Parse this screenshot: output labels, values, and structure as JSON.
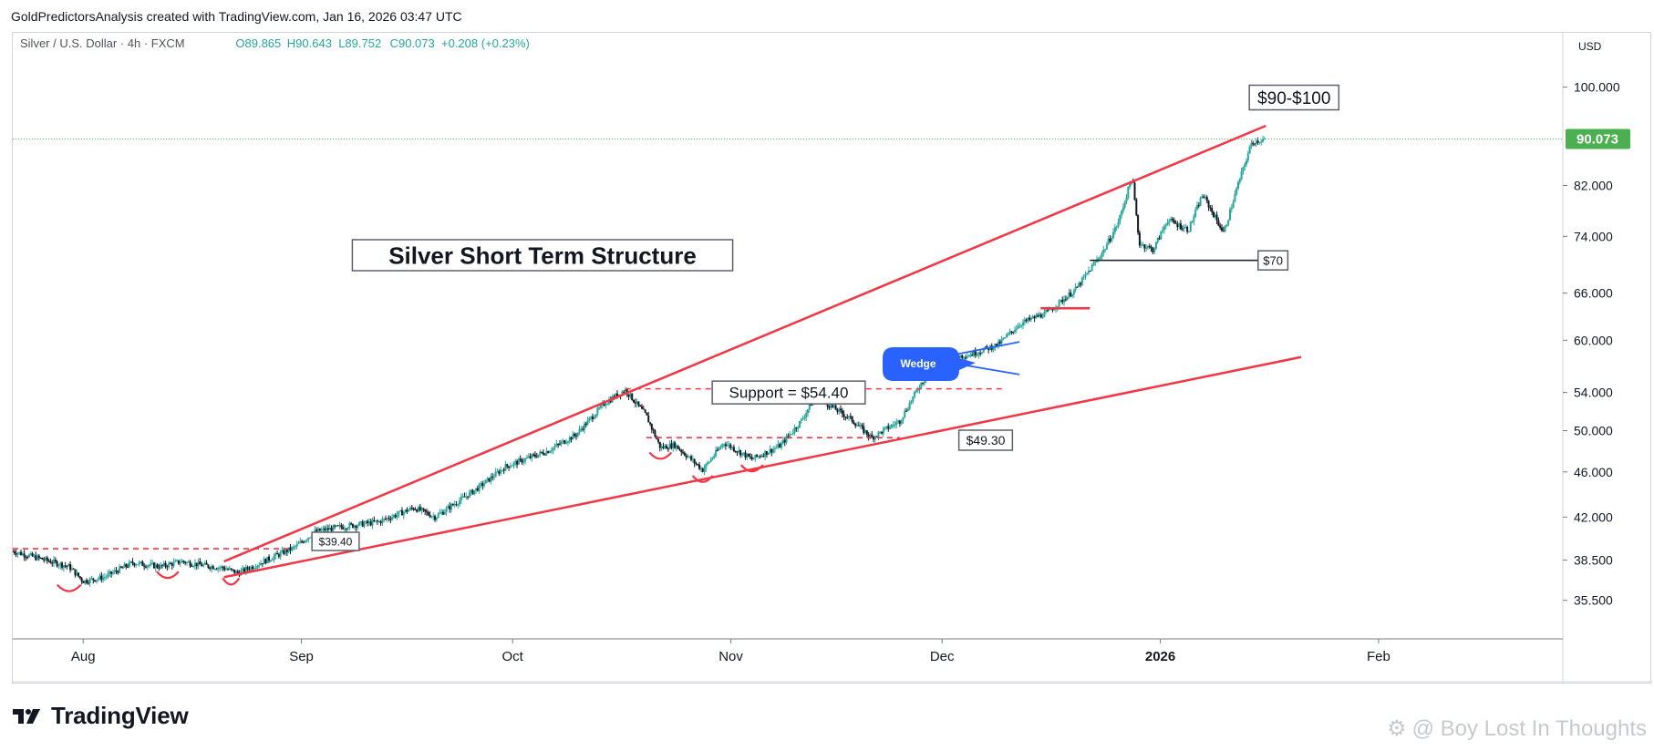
{
  "header": {
    "credit": "GoldPredictorsAnalysis created with TradingView.com, Jan 16, 2026 03:47 UTC"
  },
  "symbol_bar": {
    "symbol": "Silver / U.S. Dollar · 4h · FXCM",
    "open": "O89.865",
    "high": "H90.643",
    "low": "L89.752",
    "close": "C90.073",
    "change": "+0.208 (+0.23%)"
  },
  "price_axis": {
    "currency": "USD",
    "current_price": "90.073"
  },
  "footer": {
    "brand": "TradingView",
    "watermark": "@ Boy Lost In Thoughts"
  },
  "colors": {
    "up": "#26a69a",
    "down": "#131722",
    "trendline": "#f23645",
    "wedge": "#2962ff",
    "price_tag": "#4caf50",
    "grid": "#f0f3fa"
  },
  "chart_data": {
    "type": "candlestick",
    "title": "Silver Short Term Structure",
    "timeframe": "4h",
    "ylim": [
      35.5,
      105
    ],
    "y_scale": "log",
    "grid": false,
    "y_ticks": [
      "100.000",
      "82.000",
      "74.000",
      "66.000",
      "60.000",
      "54.000",
      "50.000",
      "46.000",
      "42.000",
      "38.500",
      "35.500"
    ],
    "x_ticks": [
      "Aug",
      "Sep",
      "Oct",
      "Nov",
      "Dec",
      "2026",
      "Feb"
    ],
    "price_path": [
      {
        "date": "2025-07-22",
        "price": 39.2
      },
      {
        "date": "2025-07-26",
        "price": 38.6
      },
      {
        "date": "2025-07-30",
        "price": 38.0
      },
      {
        "date": "2025-08-01",
        "price": 36.9
      },
      {
        "date": "2025-08-04",
        "price": 37.2
      },
      {
        "date": "2025-08-08",
        "price": 38.3
      },
      {
        "date": "2025-08-12",
        "price": 38.0
      },
      {
        "date": "2025-08-15",
        "price": 38.4
      },
      {
        "date": "2025-08-18",
        "price": 38.1
      },
      {
        "date": "2025-08-21",
        "price": 37.9
      },
      {
        "date": "2025-08-23",
        "price": 37.5
      },
      {
        "date": "2025-08-27",
        "price": 38.5
      },
      {
        "date": "2025-08-31",
        "price": 39.5
      },
      {
        "date": "2025-09-03",
        "price": 40.8
      },
      {
        "date": "2025-09-07",
        "price": 41.2
      },
      {
        "date": "2025-09-12",
        "price": 41.6
      },
      {
        "date": "2025-09-17",
        "price": 42.8
      },
      {
        "date": "2025-09-20",
        "price": 42.0
      },
      {
        "date": "2025-09-26",
        "price": 44.5
      },
      {
        "date": "2025-09-30",
        "price": 46.5
      },
      {
        "date": "2025-10-06",
        "price": 48.0
      },
      {
        "date": "2025-10-10",
        "price": 49.6
      },
      {
        "date": "2025-10-14",
        "price": 52.8
      },
      {
        "date": "2025-10-17",
        "price": 54.3
      },
      {
        "date": "2025-10-20",
        "price": 51.5
      },
      {
        "date": "2025-10-22",
        "price": 48.3
      },
      {
        "date": "2025-10-24",
        "price": 48.6
      },
      {
        "date": "2025-10-28",
        "price": 46.2
      },
      {
        "date": "2025-10-31",
        "price": 48.8
      },
      {
        "date": "2025-11-04",
        "price": 47.2
      },
      {
        "date": "2025-11-08",
        "price": 48.5
      },
      {
        "date": "2025-11-11",
        "price": 51.0
      },
      {
        "date": "2025-11-13",
        "price": 53.6
      },
      {
        "date": "2025-11-18",
        "price": 51.2
      },
      {
        "date": "2025-11-21",
        "price": 49.3
      },
      {
        "date": "2025-11-25",
        "price": 51.0
      },
      {
        "date": "2025-11-28",
        "price": 55.0
      },
      {
        "date": "2025-12-01",
        "price": 57.8
      },
      {
        "date": "2025-12-05",
        "price": 58.3
      },
      {
        "date": "2025-12-09",
        "price": 59.5
      },
      {
        "date": "2025-12-12",
        "price": 62.0
      },
      {
        "date": "2025-12-16",
        "price": 63.5
      },
      {
        "date": "2025-12-20",
        "price": 66.5
      },
      {
        "date": "2025-12-24",
        "price": 72.0
      },
      {
        "date": "2025-12-26",
        "price": 76.0
      },
      {
        "date": "2025-12-28",
        "price": 83.5
      },
      {
        "date": "2025-12-29",
        "price": 73.0
      },
      {
        "date": "2025-12-31",
        "price": 72.0
      },
      {
        "date": "2026-01-02",
        "price": 76.5
      },
      {
        "date": "2026-01-05",
        "price": 75.0
      },
      {
        "date": "2026-01-07",
        "price": 80.5
      },
      {
        "date": "2026-01-09",
        "price": 76.5
      },
      {
        "date": "2026-01-10",
        "price": 74.5
      },
      {
        "date": "2026-01-12",
        "price": 82.0
      },
      {
        "date": "2026-01-14",
        "price": 89.5
      },
      {
        "date": "2026-01-16",
        "price": 90.073
      }
    ],
    "trendlines": [
      {
        "name": "upper",
        "from": {
          "date": "2025-08-21",
          "price": 38.4
        },
        "to": {
          "date": "2026-01-16",
          "price": 92.5
        }
      },
      {
        "name": "lower",
        "from": {
          "date": "2025-08-21",
          "price": 37.2
        },
        "to": {
          "date": "2026-01-21",
          "price": 58.0
        }
      }
    ],
    "levels": [
      {
        "price": 39.4,
        "from": "2025-07-22",
        "to": "2025-08-31",
        "style": "dashed"
      },
      {
        "price": 54.4,
        "from": "2025-10-17",
        "to": "2025-12-10",
        "style": "dashed"
      },
      {
        "price": 49.3,
        "from": "2025-10-20",
        "to": "2025-11-25",
        "style": "dashed"
      },
      {
        "price": 64.0,
        "from": "2025-12-15",
        "to": "2025-12-22",
        "style": "solid"
      },
      {
        "price": 70.5,
        "from": "2025-12-22",
        "to": "2026-01-16",
        "style": "solid-black"
      }
    ],
    "wedge": {
      "upper": {
        "from": {
          "date": "2025-12-01",
          "price": 58.0
        },
        "to": {
          "date": "2025-12-12",
          "price": 59.8
        }
      },
      "lower": {
        "from": {
          "date": "2025-12-01",
          "price": 57.5
        },
        "to": {
          "date": "2025-12-12",
          "price": 56.0
        }
      }
    },
    "annotations": [
      {
        "text": "$90-$100"
      },
      {
        "text": "$70"
      },
      {
        "text": "Wedge"
      },
      {
        "text": "Support = $54.40"
      },
      {
        "text": "$49.30"
      },
      {
        "text": "$39.40"
      }
    ]
  }
}
